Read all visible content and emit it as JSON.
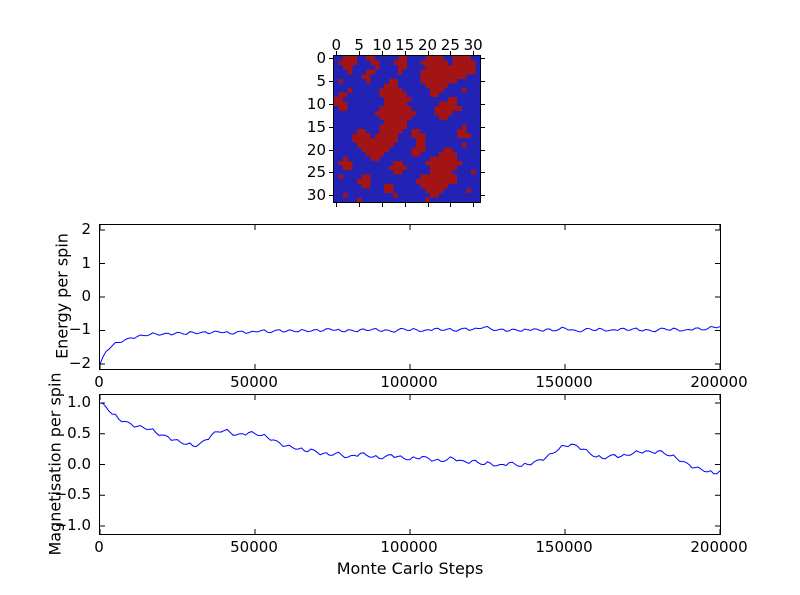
{
  "figure": {
    "background": "#ffffff",
    "line_color": "#0000ff",
    "axis_color": "#000000"
  },
  "chart_data": [
    {
      "type": "heatmap",
      "description": "spin-lattice-configuration",
      "grid_size": 32,
      "x_ticks": [
        0,
        5,
        10,
        15,
        20,
        25,
        30
      ],
      "x_tick_labels": [
        "0",
        "5",
        "10",
        "15",
        "20",
        "25",
        "30"
      ],
      "y_ticks": [
        0,
        5,
        10,
        15,
        20,
        25,
        30
      ],
      "y_tick_labels": [
        "0",
        "5",
        "10",
        "15",
        "20",
        "25",
        "30"
      ],
      "colors": {
        "up": "#a31515",
        "down": "#2222b5"
      },
      "rows": [
        "bbrrrbbrrbbbbbrrbbbbrrrrbbrrrrbb",
        "brrrrbbbrrbbbrrrbbbrrrrrrbrrrrrb",
        "bbrrbbbbbrbbbbrrbbbbrrrrrrrrrrrb",
        "bbbrbbbrrbbbbbrbbbbrrrrrrrrrrrrb",
        "bbbbbbrrbbbbbbbbbbbrrrrrrrrrrbbb",
        "brbbbbbrbbbbrrbbbbbrrrrrrrrbbbbb",
        "bbbbbbbbbbbrrrbbbbbbrrrrrbbbbbbb",
        "bbbrbbbbbbrrrrrbbbbbbrrrbbbbrbbb",
        "brrbbbbbbbrrrrrrbbbbbrrbbbbbbbbb",
        "rrbbbbbbbbbrrrrrrbbbbbbbbrrbbbbb",
        "rrrbbbbbbbbrrrrrbbbbbbbrrrrbbbbb",
        "brrbbbbbbbrrrrrrrbbbbbrrrrrrbbbb",
        "bbbbbbbbbrrrrrrrrrbbbbrrrrbbbbbb",
        "bbbbbbbbbbrrrrrrrbbbbbbrrbbbbbbb",
        "bbbbbbbbbbbrrrrrbbbbbbbbbbbbbbbb",
        "bbbbbbbbbbrrrrrrbbbbbbbbbbbbrbbb",
        "bbbbbrrbbbrrrrrbbrrbbbbbbbbrrbbb",
        "bbbbrrrrbrrrrrbbbrrrbbbbbbbrrrbb",
        "bbbbrrrrrrrrrrbbbbrrbbbbbbbbbbbb",
        "bbbbbrrrrrrrrbbbbbrrbbbbbbbbrbbb",
        "bbbbbbrrrrrrbbbbbrrrbbbbrrbbbbbb",
        "bbbbbbbrrrrbbbbbbrrbbbbrrrrbbbbb",
        "bbrbbbbbrrbbbbbbbbbbbrrrrrrbbbbb",
        "brrrbbbbbbbbbrrbbbbbrrrrrrrrbbbb",
        "bbrrbbbbbbbbrrrrbbbbbrrrrrrbbbbb",
        "bbbbbbbbbbbbbrrbbbbbbrrrrrbbbbrb",
        "brbbbbrrbbbbbbbbbbbrrrrrrrrbbbbb",
        "bbbbbrrrbbbbbbbbbbrrrrrrrrrbbbbb",
        "bbbbbbrrbbbrrbbbbbbrrrrrrbbbbbbb",
        "bbbbbbbbbbbrrbbbbbbbrrrrbbbbbrbb",
        "bbrbbbbbbbbbbrbbbbbbbrrbbbbbbbbb",
        "bbbbbrbbbbbbbbbbbbbbrbbbbbbbbbbb"
      ]
    },
    {
      "type": "line",
      "ylabel": "Energy per spin",
      "xlim": [
        0,
        200000
      ],
      "ylim": [
        -2.15,
        2.15
      ],
      "x_ticks": [
        0,
        50000,
        100000,
        150000,
        200000
      ],
      "x_tick_labels": [
        "0",
        "50000",
        "100000",
        "150000",
        "200000"
      ],
      "y_ticks": [
        2,
        1,
        0,
        -1,
        -2
      ],
      "y_tick_labels": [
        "2",
        "1",
        "0",
        "−1",
        "−2"
      ],
      "x_step": 2000,
      "jitter": 0.045,
      "values": [
        -2.0,
        -1.62,
        -1.45,
        -1.36,
        -1.28,
        -1.22,
        -1.18,
        -1.15,
        -1.13,
        -1.1,
        -1.12,
        -1.08,
        -1.1,
        -1.07,
        -1.11,
        -1.05,
        -1.08,
        -1.04,
        -1.07,
        -1.03,
        -1.06,
        -1.1,
        -1.05,
        -1.02,
        -1.07,
        -1.04,
        -1.0,
        -1.05,
        -1.02,
        -0.98,
        -1.03,
        -1.0,
        -1.04,
        -0.99,
        -1.02,
        -0.97,
        -1.01,
        -0.95,
        -0.99,
        -1.03,
        -0.98,
        -1.02,
        -0.97,
        -1.0,
        -0.96,
        -1.01,
        -0.98,
        -1.03,
        -0.99,
        -0.95,
        -1.0,
        -0.97,
        -1.02,
        -0.98,
        -0.94,
        -0.99,
        -0.96,
        -1.01,
        -0.97,
        -0.93,
        -0.98,
        -0.94,
        -0.9,
        -0.95,
        -0.99,
        -0.96,
        -1.01,
        -0.97,
        -1.02,
        -0.98,
        -0.95,
        -1.0,
        -0.96,
        -1.01,
        -0.97,
        -0.93,
        -0.98,
        -1.02,
        -0.99,
        -0.95,
        -1.0,
        -0.96,
        -1.01,
        -0.98,
        -0.94,
        -0.99,
        -0.95,
        -1.0,
        -0.97,
        -1.02,
        -0.98,
        -0.94,
        -0.99,
        -0.96,
        -1.01,
        -0.97,
        -0.93,
        -0.98,
        -0.95,
        -0.9,
        -0.88
      ]
    },
    {
      "type": "line",
      "ylabel": "Magnetisation per spin",
      "xlabel": "Monte Carlo Steps",
      "xlim": [
        0,
        200000
      ],
      "ylim": [
        -1.13,
        1.13
      ],
      "x_ticks": [
        0,
        50000,
        100000,
        150000,
        200000
      ],
      "x_tick_labels": [
        "0",
        "50000",
        "100000",
        "150000",
        "200000"
      ],
      "y_ticks": [
        1.0,
        0.5,
        0.0,
        -0.5,
        -1.0
      ],
      "y_tick_labels": [
        "1.0",
        "0.5",
        "0.0",
        "−0.5",
        "−1.0"
      ],
      "x_step": 2000,
      "jitter": 0.035,
      "values": [
        1.0,
        0.93,
        0.82,
        0.74,
        0.7,
        0.66,
        0.62,
        0.6,
        0.57,
        0.52,
        0.48,
        0.45,
        0.4,
        0.36,
        0.33,
        0.3,
        0.33,
        0.4,
        0.48,
        0.53,
        0.55,
        0.52,
        0.48,
        0.5,
        0.52,
        0.5,
        0.47,
        0.44,
        0.4,
        0.35,
        0.3,
        0.28,
        0.25,
        0.22,
        0.25,
        0.2,
        0.18,
        0.15,
        0.18,
        0.15,
        0.12,
        0.15,
        0.18,
        0.15,
        0.12,
        0.1,
        0.13,
        0.16,
        0.13,
        0.1,
        0.08,
        0.1,
        0.13,
        0.1,
        0.07,
        0.05,
        0.08,
        0.1,
        0.07,
        0.04,
        0.06,
        0.03,
        0.0,
        0.02,
        -0.02,
        0.0,
        0.03,
        0.0,
        -0.03,
        0.0,
        0.04,
        0.08,
        0.12,
        0.18,
        0.25,
        0.3,
        0.33,
        0.3,
        0.25,
        0.18,
        0.12,
        0.1,
        0.13,
        0.16,
        0.13,
        0.15,
        0.18,
        0.2,
        0.22,
        0.2,
        0.22,
        0.18,
        0.14,
        0.1,
        0.05,
        0.0,
        -0.05,
        -0.08,
        -0.12,
        -0.15,
        -0.1
      ]
    }
  ]
}
